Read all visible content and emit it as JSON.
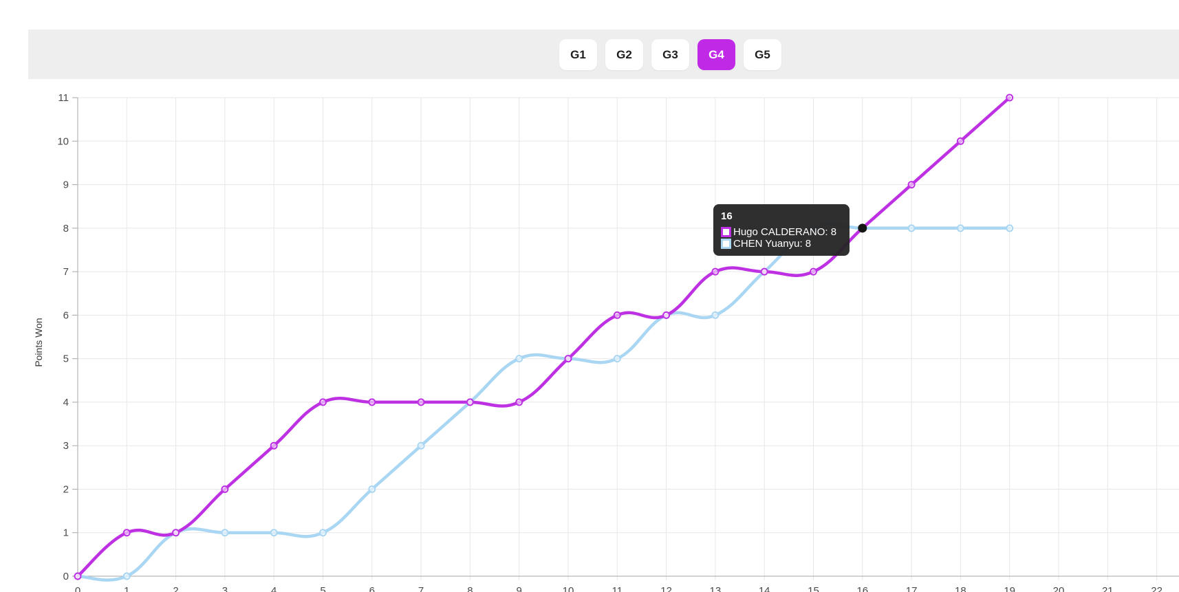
{
  "tabs": [
    {
      "label": "G1",
      "active": false
    },
    {
      "label": "G2",
      "active": false
    },
    {
      "label": "G3",
      "active": false
    },
    {
      "label": "G4",
      "active": true
    },
    {
      "label": "G5",
      "active": false
    }
  ],
  "chart_data": {
    "type": "line",
    "x": [
      0,
      1,
      2,
      3,
      4,
      5,
      6,
      7,
      8,
      9,
      10,
      11,
      12,
      13,
      14,
      15,
      16,
      17,
      18,
      19
    ],
    "series": [
      {
        "name": "Hugo CALDERANO",
        "color": "#bd31e3",
        "values": [
          0,
          1,
          1,
          2,
          3,
          4,
          4,
          4,
          4,
          4,
          5,
          6,
          6,
          7,
          7,
          7,
          8,
          9,
          10,
          11
        ]
      },
      {
        "name": "CHEN Yuanyu",
        "color": "#a9d6f2",
        "values": [
          0,
          0,
          1,
          1,
          1,
          1,
          2,
          3,
          4,
          5,
          5,
          5,
          6,
          6,
          7,
          8,
          8,
          8,
          8,
          8
        ]
      }
    ],
    "title": "",
    "xlabel": "",
    "ylabel": "Points Won",
    "xlim": [
      0,
      22.5
    ],
    "ylim": [
      0,
      11
    ],
    "x_ticks": [
      0,
      1,
      2,
      3,
      4,
      5,
      6,
      7,
      8,
      9,
      10,
      11,
      12,
      13,
      14,
      15,
      16,
      17,
      18,
      19,
      20,
      21,
      22
    ],
    "y_ticks": [
      0,
      1,
      2,
      3,
      4,
      5,
      6,
      7,
      8,
      9,
      10,
      11
    ],
    "grid": true,
    "legend_position": "tooltip-only",
    "highlight_point": {
      "x": 16,
      "y": 8
    }
  },
  "tooltip": {
    "title": "16",
    "rows": [
      {
        "text": "Hugo CALDERANO: 8",
        "color": "#bd31e3"
      },
      {
        "text": "CHEN Yuanyu: 8",
        "color": "#a9d6f2"
      }
    ]
  },
  "colors": {
    "active_tab": "#c02ae6",
    "tab_bar_bg": "#eeeeee",
    "grid": "#e7e7e7",
    "axis": "#a6a6a6",
    "tick_text": "#4a4a4a",
    "tooltip_bg": "#242424",
    "highlight_dot": "#161616"
  }
}
